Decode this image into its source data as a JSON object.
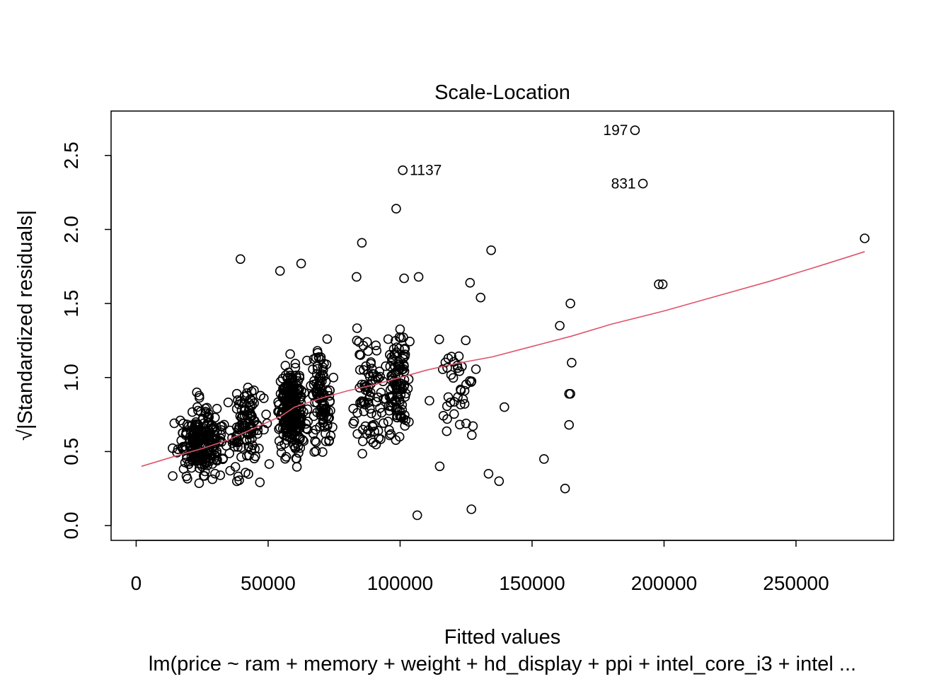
{
  "chart_data": {
    "type": "scatter",
    "title": "Scale-Location",
    "xlabel": "Fitted values",
    "ylabel": "√|Standardized residuals|",
    "subtitle": "lm(price ~ ram + memory + weight + hd_display + ppi + intel_core_i3 + intel ...",
    "xlim": [
      -9500,
      287000
    ],
    "ylim": [
      -0.1,
      2.8
    ],
    "x_ticks": [
      0,
      50000,
      100000,
      150000,
      200000,
      250000
    ],
    "x_tick_labels": [
      "0",
      "50000",
      "100000",
      "150000",
      "200000",
      "250000"
    ],
    "y_ticks": [
      0.0,
      0.5,
      1.0,
      1.5,
      2.0,
      2.5
    ],
    "y_tick_labels": [
      "0.0",
      "0.5",
      "1.0",
      "1.5",
      "2.0",
      "2.5"
    ],
    "grid": false,
    "point_style": "open-circle",
    "colors": {
      "points": "#000000",
      "smoother": "#DF536B",
      "frame": "#000000"
    },
    "labeled_points": [
      {
        "label": "197",
        "x": 189000,
        "y": 2.67,
        "side": "left"
      },
      {
        "label": "1137",
        "x": 101000,
        "y": 2.4,
        "side": "right"
      },
      {
        "label": "831",
        "x": 192000,
        "y": 2.31,
        "side": "left"
      }
    ],
    "notable_points": [
      [
        98500,
        2.14
      ],
      [
        85500,
        1.91
      ],
      [
        134500,
        1.86
      ],
      [
        276000,
        1.94
      ],
      [
        39500,
        1.8
      ],
      [
        54500,
        1.72
      ],
      [
        62500,
        1.77
      ],
      [
        83500,
        1.68
      ],
      [
        101500,
        1.67
      ],
      [
        107000,
        1.68
      ],
      [
        126500,
        1.64
      ],
      [
        198000,
        1.63
      ],
      [
        199500,
        1.63
      ],
      [
        164500,
        1.5
      ],
      [
        160500,
        1.35
      ],
      [
        165000,
        1.1
      ],
      [
        164000,
        0.89
      ],
      [
        164500,
        0.89
      ],
      [
        164000,
        0.68
      ],
      [
        154500,
        0.45
      ],
      [
        162500,
        0.25
      ],
      [
        139500,
        0.8
      ],
      [
        137500,
        0.3
      ],
      [
        133500,
        0.35
      ],
      [
        127000,
        0.11
      ],
      [
        106500,
        0.07
      ],
      [
        130500,
        1.54
      ],
      [
        115000,
        0.4
      ]
    ],
    "dense_clusters": [
      {
        "x_center": 25000,
        "x_spread": 10000,
        "y_center": 0.55,
        "y_spread": 0.25,
        "count": 230
      },
      {
        "x_center": 42000,
        "x_spread": 8000,
        "y_center": 0.65,
        "y_spread": 0.3,
        "count": 110
      },
      {
        "x_center": 59000,
        "x_spread": 5500,
        "y_center": 0.78,
        "y_spread": 0.3,
        "count": 260
      },
      {
        "x_center": 70000,
        "x_spread": 5000,
        "y_center": 0.85,
        "y_spread": 0.35,
        "count": 110
      },
      {
        "x_center": 88000,
        "x_spread": 7000,
        "y_center": 0.9,
        "y_spread": 0.4,
        "count": 80
      },
      {
        "x_center": 99000,
        "x_spread": 5000,
        "y_center": 0.95,
        "y_spread": 0.4,
        "count": 110
      },
      {
        "x_center": 122000,
        "x_spread": 10000,
        "y_center": 1.0,
        "y_spread": 0.35,
        "count": 40
      }
    ],
    "smoother": {
      "x": [
        2000,
        15000,
        25000,
        35000,
        45000,
        55000,
        60000,
        70000,
        80000,
        90000,
        100000,
        110000,
        120000,
        135000,
        150000,
        165000,
        180000,
        200000,
        220000,
        240000,
        260000,
        276000
      ],
      "y": [
        0.4,
        0.47,
        0.52,
        0.58,
        0.66,
        0.74,
        0.8,
        0.86,
        0.91,
        0.95,
        1.0,
        1.05,
        1.09,
        1.14,
        1.21,
        1.28,
        1.36,
        1.45,
        1.55,
        1.65,
        1.76,
        1.85
      ]
    }
  }
}
